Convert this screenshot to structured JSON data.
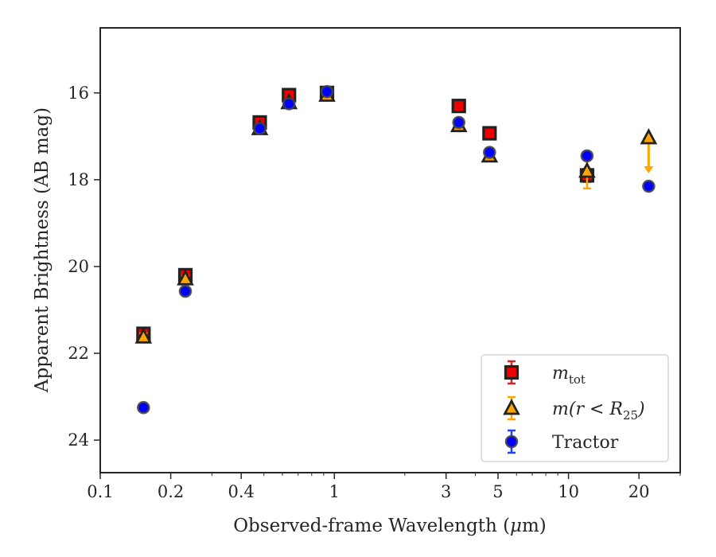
{
  "chart_data": {
    "type": "scatter",
    "xlabel_main": "Observed-frame Wavelength (",
    "xlabel_mu": "μ",
    "xlabel_end": "m)",
    "ylabel": "Apparent Brightness (AB mag)",
    "xscale": "log",
    "xlim": [
      0.1,
      30
    ],
    "ylim": [
      24.75,
      14.5
    ],
    "y_inverted": true,
    "x_ticks": [
      {
        "v": 0.1,
        "label": "0.1"
      },
      {
        "v": 0.2,
        "label": "0.2"
      },
      {
        "v": 0.4,
        "label": "0.4"
      },
      {
        "v": 1,
        "label": "1"
      },
      {
        "v": 3,
        "label": "3"
      },
      {
        "v": 5,
        "label": "5"
      },
      {
        "v": 10,
        "label": "10"
      },
      {
        "v": 20,
        "label": "20"
      }
    ],
    "y_ticks": [
      {
        "v": 16,
        "label": "16"
      },
      {
        "v": 18,
        "label": "18"
      },
      {
        "v": 20,
        "label": "20"
      },
      {
        "v": 22,
        "label": "22"
      },
      {
        "v": 24,
        "label": "24"
      }
    ],
    "grid": false,
    "legend_position": "lower-right",
    "series": [
      {
        "name": "m_tot",
        "marker": "square",
        "color": "#ee0000",
        "errcolor": "#d62728",
        "points": [
          {
            "x": 0.153,
            "y": 21.55,
            "err": 0.1
          },
          {
            "x": 0.231,
            "y": 20.2,
            "err": 0.08
          },
          {
            "x": 0.48,
            "y": 16.68,
            "err": 0.05
          },
          {
            "x": 0.64,
            "y": 16.05,
            "err": 0.05
          },
          {
            "x": 0.93,
            "y": 16.0,
            "err": 0.05
          },
          {
            "x": 3.4,
            "y": 16.3,
            "err": 0.04
          },
          {
            "x": 4.6,
            "y": 16.93,
            "err": 0.05
          },
          {
            "x": 12.0,
            "y": 17.9,
            "err": 0.15
          }
        ]
      },
      {
        "name": "m(r < R25)",
        "marker": "triangle",
        "color": "#ffa500",
        "errcolor": "#ffa500",
        "points": [
          {
            "x": 0.153,
            "y": 21.62,
            "err": 0.08
          },
          {
            "x": 0.231,
            "y": 20.28,
            "err": 0.06
          },
          {
            "x": 0.48,
            "y": 16.82,
            "err": 0.05
          },
          {
            "x": 0.64,
            "y": 16.22,
            "err": 0.05
          },
          {
            "x": 0.93,
            "y": 16.05,
            "err": 0.05
          },
          {
            "x": 3.4,
            "y": 16.75,
            "err": 0.05
          },
          {
            "x": 4.6,
            "y": 17.45,
            "err": 0.06
          },
          {
            "x": 12.0,
            "y": 17.8,
            "err": 0.4
          },
          {
            "x": 22.0,
            "y": 17.03,
            "err": 0,
            "upper_limit": true
          }
        ]
      },
      {
        "name": "Tractor",
        "marker": "circle",
        "color": "#0000ff",
        "errcolor": "#2244ee",
        "points": [
          {
            "x": 0.153,
            "y": 23.25,
            "err": 0.06
          },
          {
            "x": 0.231,
            "y": 20.57,
            "err": 0.06
          },
          {
            "x": 0.48,
            "y": 16.82,
            "err": 0.05
          },
          {
            "x": 0.64,
            "y": 16.25,
            "err": 0.04
          },
          {
            "x": 0.93,
            "y": 15.97,
            "err": 0.04
          },
          {
            "x": 3.4,
            "y": 16.68,
            "err": 0.04
          },
          {
            "x": 4.6,
            "y": 17.37,
            "err": 0.05
          },
          {
            "x": 12.0,
            "y": 17.45,
            "err": 0.08
          },
          {
            "x": 22.0,
            "y": 18.15,
            "err": 0.07
          }
        ]
      }
    ],
    "legend": {
      "entries": [
        {
          "marker": "square",
          "label_main": "m",
          "label_sub": "tot",
          "label_tail": ""
        },
        {
          "marker": "triangle",
          "label_main": "m(r < R",
          "label_sub": "25",
          "label_tail": ")"
        },
        {
          "marker": "circle",
          "label_main": "Tractor",
          "label_sub": "",
          "label_tail": ""
        }
      ]
    }
  }
}
